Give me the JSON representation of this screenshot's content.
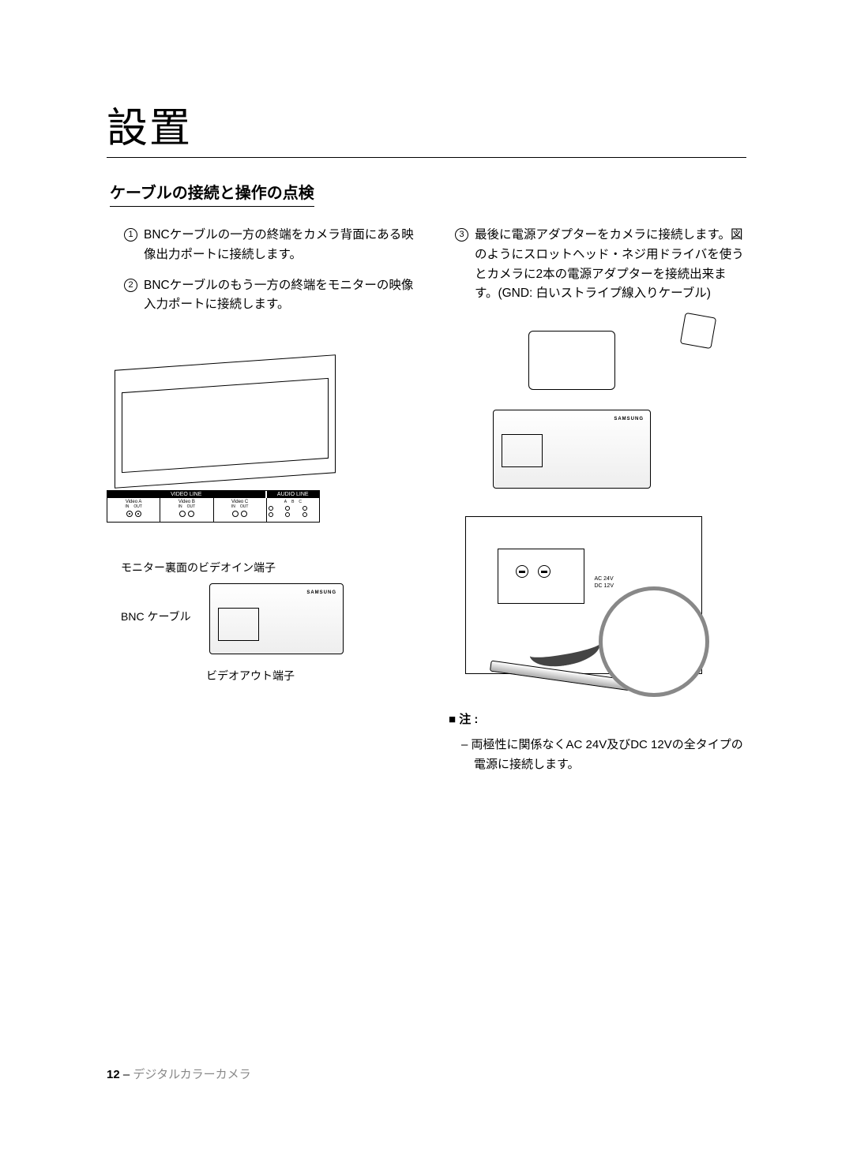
{
  "page": {
    "title": "設置",
    "section_title": "ケーブルの接続と操作の点検",
    "page_number": "12",
    "footer_text": "デジタルカラーカメラ"
  },
  "steps": {
    "s1": {
      "num": "1",
      "text": "BNCケーブルの一方の終端をカメラ背面にある映像出力ポートに接続します。"
    },
    "s2": {
      "num": "2",
      "text": "BNCケーブルのもう一方の終端をモニターの映像入力ポートに接続します。"
    },
    "s3": {
      "num": "3",
      "text": "最後に電源アダプターをカメラに接続します。図のようにスロットヘッド・ネジ用ドライバを使うとカメラに2本の電源アダプターを接続出来ます。(GND: 白いストライプ線入りケーブル)"
    }
  },
  "diagram_left": {
    "port_panel": {
      "video_line": "VIDEO LINE",
      "audio_line": "AUDIO LINE",
      "video_a": "Video A",
      "video_b": "Video B",
      "video_c": "Video C",
      "in": "IN",
      "out": "OUT",
      "a": "A",
      "b": "B",
      "c": "C"
    },
    "labels": {
      "monitor_back": "モニター裏面のビデオイン端子",
      "bnc_cable": "BNC ケーブル",
      "video_out": "ビデオアウト端子"
    }
  },
  "diagram_right": {
    "terminal": {
      "ac": "AC 24V",
      "dc": "DC 12V"
    }
  },
  "note": {
    "title": "■ 注 :",
    "item1": "– 両極性に関係なくAC 24V及びDC 12Vの全タイプの電源に接続します。"
  },
  "colors": {
    "text": "#000000",
    "bg": "#ffffff",
    "muted": "#888888",
    "arrow": "#444444"
  }
}
